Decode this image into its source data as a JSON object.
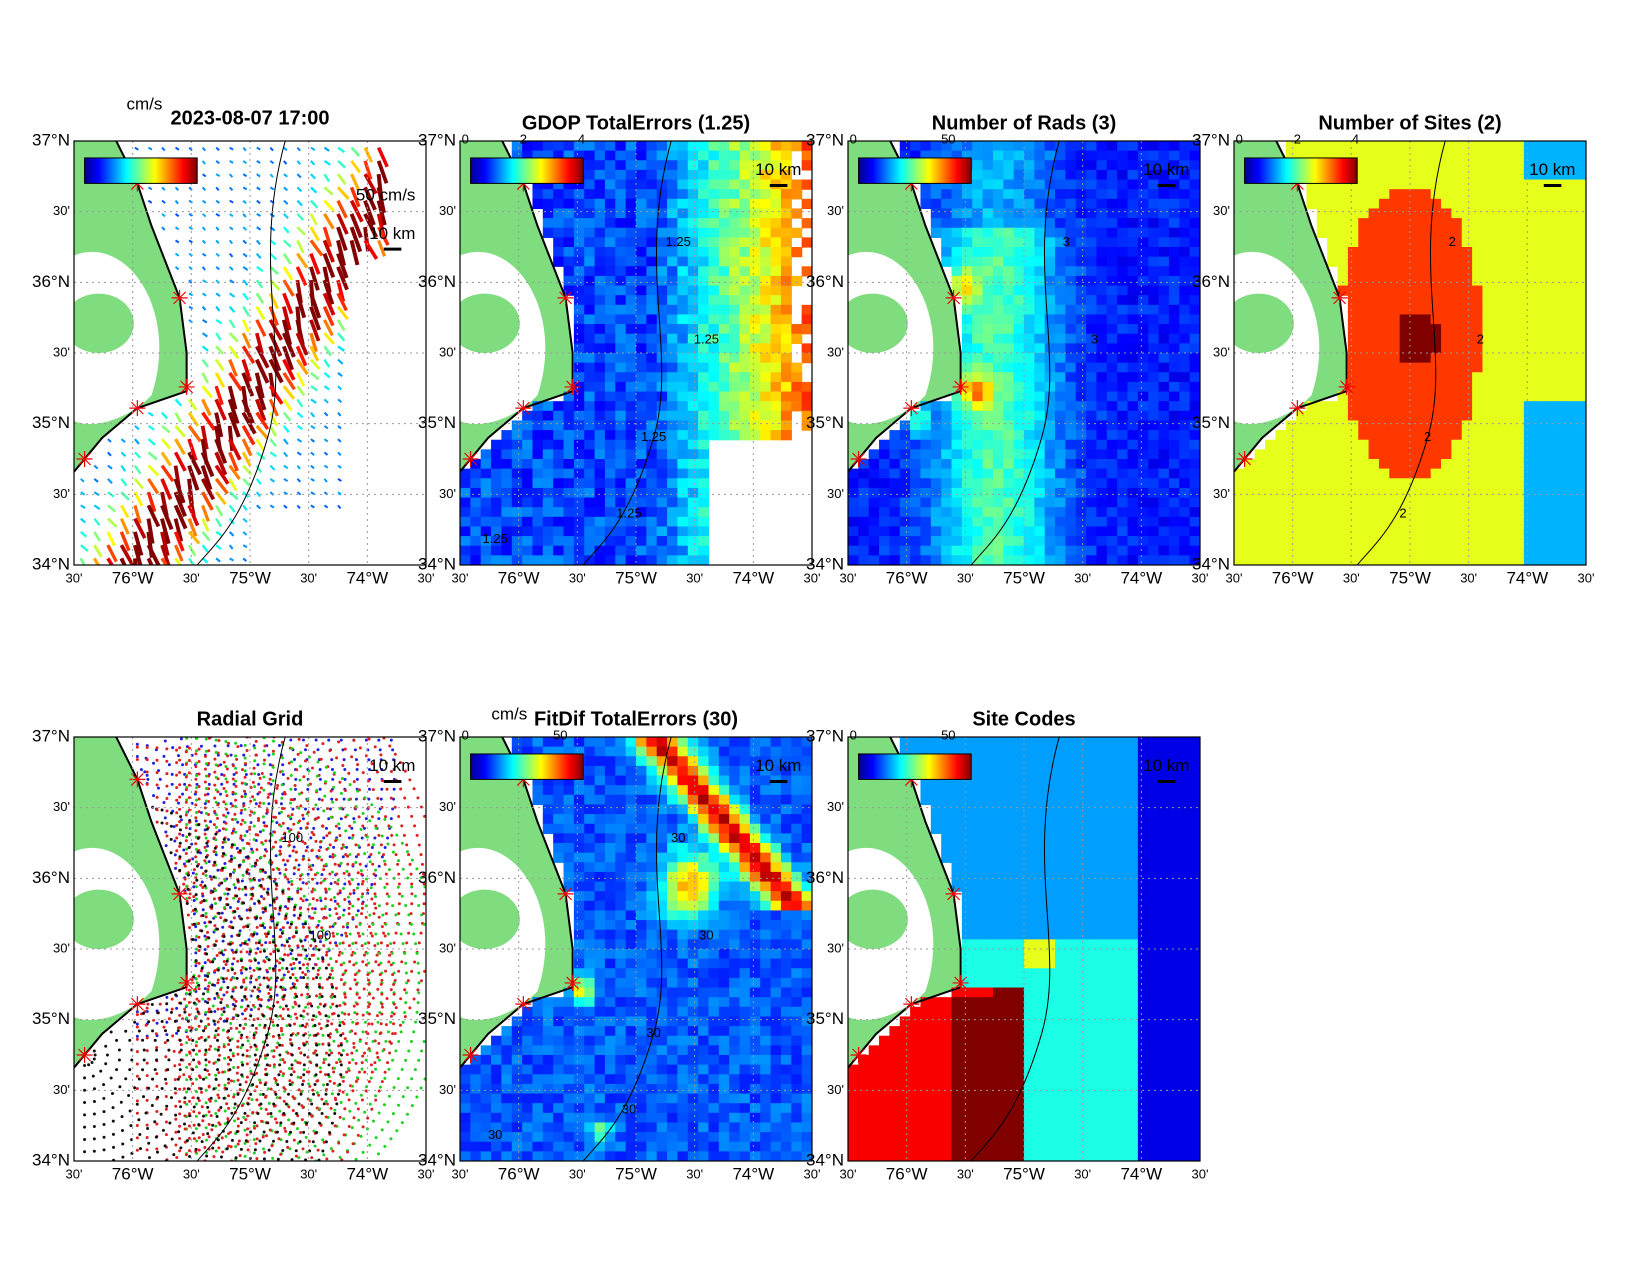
{
  "axes": {
    "lat_labels": [
      "37°N",
      "30'",
      "36°N",
      "30'",
      "35°N",
      "30'",
      "34°N"
    ],
    "lon_labels": [
      "30'",
      "76°W",
      "30'",
      "75°W",
      "30'",
      "74°W",
      "30'"
    ]
  },
  "panels": [
    {
      "title": "2023-08-07 17:00",
      "colorbar_unit": "cm/s",
      "scale_labels": [
        "50 cm/s",
        "10 km"
      ]
    },
    {
      "title": "GDOP TotalErrors (1.25)",
      "colorbar_labels": [
        "0",
        "2",
        "4"
      ],
      "scale_labels": [
        "10 km"
      ],
      "contour_labels": [
        "1.25",
        "1.25",
        "1.25",
        "1.25",
        "1.25"
      ]
    },
    {
      "title": "Number of Rads (3)",
      "colorbar_labels": [
        "0",
        "50"
      ],
      "scale_labels": [
        "10 km"
      ],
      "contour_labels": [
        "3",
        "3"
      ]
    },
    {
      "title": "Number of Sites (2)",
      "colorbar_labels": [
        "0",
        "2",
        "4"
      ],
      "scale_labels": [
        "10 km"
      ],
      "contour_labels": [
        "2",
        "2",
        "2",
        "2"
      ]
    },
    {
      "title": "Radial Grid",
      "scale_labels": [
        "10 km"
      ],
      "contour_labels": [
        "100",
        "100"
      ]
    },
    {
      "title": "FitDif TotalErrors (30)",
      "colorbar_unit": "cm/s",
      "colorbar_labels": [
        "0",
        "50"
      ],
      "scale_labels": [
        "10 km"
      ],
      "contour_labels": [
        "30",
        "30",
        "30",
        "30",
        "30"
      ]
    },
    {
      "title": "Site Codes",
      "colorbar_labels": [
        "0",
        "50"
      ],
      "scale_labels": [
        "10 km"
      ]
    }
  ]
}
